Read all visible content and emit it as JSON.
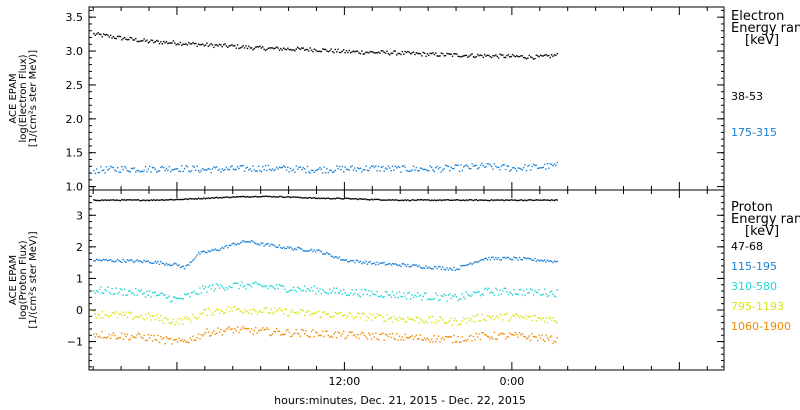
{
  "chart_data": [
    {
      "type": "scatter",
      "ylabel": [
        "ACE EPAM",
        "log(Electron Flux)",
        "[1/(cm²s ster MeV)]"
      ],
      "ylim": [
        0.95,
        3.65
      ],
      "yticks": [
        1.0,
        1.5,
        2.0,
        2.5,
        3.0,
        3.5
      ],
      "ytick_labels": [
        "1.0",
        "1.5",
        "2.0",
        "2.5",
        "3.0",
        "3.5"
      ],
      "legend": {
        "placement": "right",
        "title_lines": [
          "Electron",
          "Energy ranges",
          "[keV]"
        ]
      },
      "series": [
        {
          "name": "38-53",
          "color": "#000000",
          "x": [
            -6,
            -4,
            -2,
            0,
            2,
            4,
            6,
            8,
            10,
            12,
            14,
            16,
            18,
            20,
            22,
            24,
            26,
            27.3
          ],
          "y": [
            3.26,
            3.2,
            3.15,
            3.13,
            3.1,
            3.08,
            3.05,
            3.04,
            3.03,
            3.0,
            2.99,
            2.98,
            2.96,
            2.95,
            2.94,
            2.93,
            2.92,
            2.95
          ]
        },
        {
          "name": "175-315",
          "color": "#1a7fd4",
          "x": [
            -6,
            -4,
            -2,
            0,
            2,
            4,
            6,
            8,
            10,
            12,
            14,
            16,
            18,
            20,
            22,
            24,
            26,
            27.3
          ],
          "y": [
            1.25,
            1.27,
            1.27,
            1.28,
            1.26,
            1.27,
            1.28,
            1.27,
            1.26,
            1.27,
            1.28,
            1.27,
            1.27,
            1.28,
            1.31,
            1.28,
            1.3,
            1.32
          ]
        }
      ]
    },
    {
      "type": "scatter",
      "ylabel": [
        "ACE EPAM",
        "log(Proton Flux)",
        "[1/(cm²s ster MeV)]"
      ],
      "ylim": [
        -1.9,
        3.8
      ],
      "yticks": [
        -1,
        0,
        1,
        2,
        3
      ],
      "ytick_labels": [
        "−1",
        "0",
        "1",
        "2",
        "3"
      ],
      "xlabel": "hours:minutes, Dec. 21, 2015 - Dec. 22, 2015",
      "xlim": [
        -6.3,
        39.2
      ],
      "xticks": [
        12,
        24
      ],
      "xtick_labels": [
        "12:00",
        "0:00"
      ],
      "legend": {
        "placement": "right",
        "title_lines": [
          "Proton",
          "Energy ranges",
          "[keV]"
        ]
      },
      "series": [
        {
          "name": "47-68",
          "color": "#000000",
          "x": [
            -6,
            -4,
            -2,
            0,
            2,
            4,
            6,
            8,
            10,
            12,
            14,
            16,
            18,
            20,
            22,
            24,
            26,
            27.3
          ],
          "y": [
            3.5,
            3.5,
            3.5,
            3.52,
            3.56,
            3.6,
            3.62,
            3.6,
            3.56,
            3.55,
            3.52,
            3.5,
            3.5,
            3.5,
            3.5,
            3.5,
            3.5,
            3.5
          ]
        },
        {
          "name": "115-195",
          "color": "#1a7fd4",
          "x": [
            -6,
            -4,
            -2,
            0,
            0.5,
            1.5,
            3,
            4,
            5,
            6,
            7,
            8,
            10,
            11,
            12,
            14,
            16,
            18,
            20,
            21,
            22,
            24,
            26,
            27.3
          ],
          "y": [
            1.6,
            1.58,
            1.55,
            1.45,
            1.35,
            1.8,
            1.95,
            2.1,
            2.2,
            2.1,
            2.05,
            1.98,
            1.9,
            1.75,
            1.6,
            1.5,
            1.45,
            1.38,
            1.32,
            1.5,
            1.65,
            1.65,
            1.6,
            1.55
          ]
        },
        {
          "name": "310-580",
          "color": "#22d3d3",
          "x": [
            -6,
            -4,
            -2,
            0,
            1,
            2,
            4,
            6,
            8,
            10,
            12,
            14,
            16,
            18,
            20,
            22,
            24,
            26,
            27.3
          ],
          "y": [
            0.65,
            0.6,
            0.55,
            0.35,
            0.5,
            0.7,
            0.8,
            0.78,
            0.7,
            0.65,
            0.58,
            0.55,
            0.5,
            0.45,
            0.4,
            0.6,
            0.6,
            0.58,
            0.55
          ]
        },
        {
          "name": "795-1193",
          "color": "#d8e410",
          "x": [
            -6,
            -4,
            -2,
            0,
            1,
            2,
            4,
            6,
            8,
            10,
            12,
            14,
            16,
            18,
            20,
            22,
            24,
            26,
            27.3
          ],
          "y": [
            -0.1,
            -0.15,
            -0.2,
            -0.35,
            -0.25,
            -0.05,
            0.05,
            0.0,
            -0.05,
            -0.1,
            -0.15,
            -0.2,
            -0.25,
            -0.3,
            -0.35,
            -0.2,
            -0.2,
            -0.25,
            -0.3
          ]
        },
        {
          "name": "1060-1900",
          "color": "#f08a00",
          "x": [
            -6,
            -4,
            -2,
            0,
            1,
            2,
            4,
            6,
            8,
            10,
            12,
            14,
            16,
            18,
            20,
            22,
            24,
            26,
            27.3
          ],
          "y": [
            -0.75,
            -0.8,
            -0.85,
            -1.0,
            -0.9,
            -0.7,
            -0.6,
            -0.65,
            -0.7,
            -0.72,
            -0.78,
            -0.8,
            -0.85,
            -0.88,
            -0.9,
            -0.8,
            -0.8,
            -0.85,
            -0.95
          ]
        }
      ]
    }
  ]
}
